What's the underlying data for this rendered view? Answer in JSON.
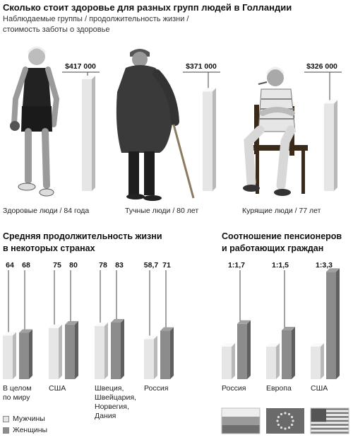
{
  "title": "Сколько стоит здоровье для разных групп людей в Голландии",
  "subtitle_lines": [
    "Наблюдаемые группы / продолжительность жизни /",
    "стоимость заботы о здоровье"
  ],
  "colors": {
    "light": "#e6e6e6",
    "dark": "#8c8c8c",
    "line": "#444444"
  },
  "chart_data": [
    {
      "type": "bar",
      "title": "Сколько стоит здоровье для разных групп людей в Голландии",
      "categories": [
        "Здоровые люди / 84 года",
        "Тучные люди / 80 лет",
        "Курящие люди / 77 лет"
      ],
      "values": [
        417000,
        371000,
        326000
      ],
      "value_labels": [
        "$417 000",
        "$371 000",
        "$326 000"
      ],
      "ylim": [
        0,
        417000
      ]
    },
    {
      "type": "bar",
      "title": "Средняя продолжительность жизни в некоторых странах",
      "title_lines": [
        "Средняя продолжительность жизни",
        "в некоторых странах"
      ],
      "categories": [
        [
          "В целом",
          "по миру"
        ],
        [
          "США"
        ],
        [
          "Швеция,",
          "Швейцария,",
          "Норвегия,",
          "Дания"
        ],
        [
          "Россия"
        ]
      ],
      "series": [
        {
          "name": "Мужчины",
          "values": [
            64,
            75,
            78,
            58.7
          ],
          "labels": [
            "64",
            "75",
            "78",
            "58,7"
          ]
        },
        {
          "name": "Женщины",
          "values": [
            68,
            80,
            83,
            71
          ],
          "labels": [
            "68",
            "80",
            "83",
            "71"
          ]
        }
      ],
      "legend": "bottom-left"
    },
    {
      "type": "bar",
      "title": "Соотношение пенсионеров и работающих граждан",
      "title_lines": [
        "Соотношение пенсионеров",
        "и работающих граждан"
      ],
      "categories": [
        "Россия",
        "Европа",
        "США"
      ],
      "ratio_labels": [
        "1:1,7",
        "1:1,5",
        "1:3,3"
      ],
      "series": [
        {
          "values": [
            1,
            1,
            1
          ]
        },
        {
          "values": [
            1.7,
            1.5,
            3.3
          ]
        }
      ],
      "flag_icons": [
        "russia-flag-icon",
        "eu-flag-icon",
        "usa-flag-icon"
      ]
    }
  ]
}
